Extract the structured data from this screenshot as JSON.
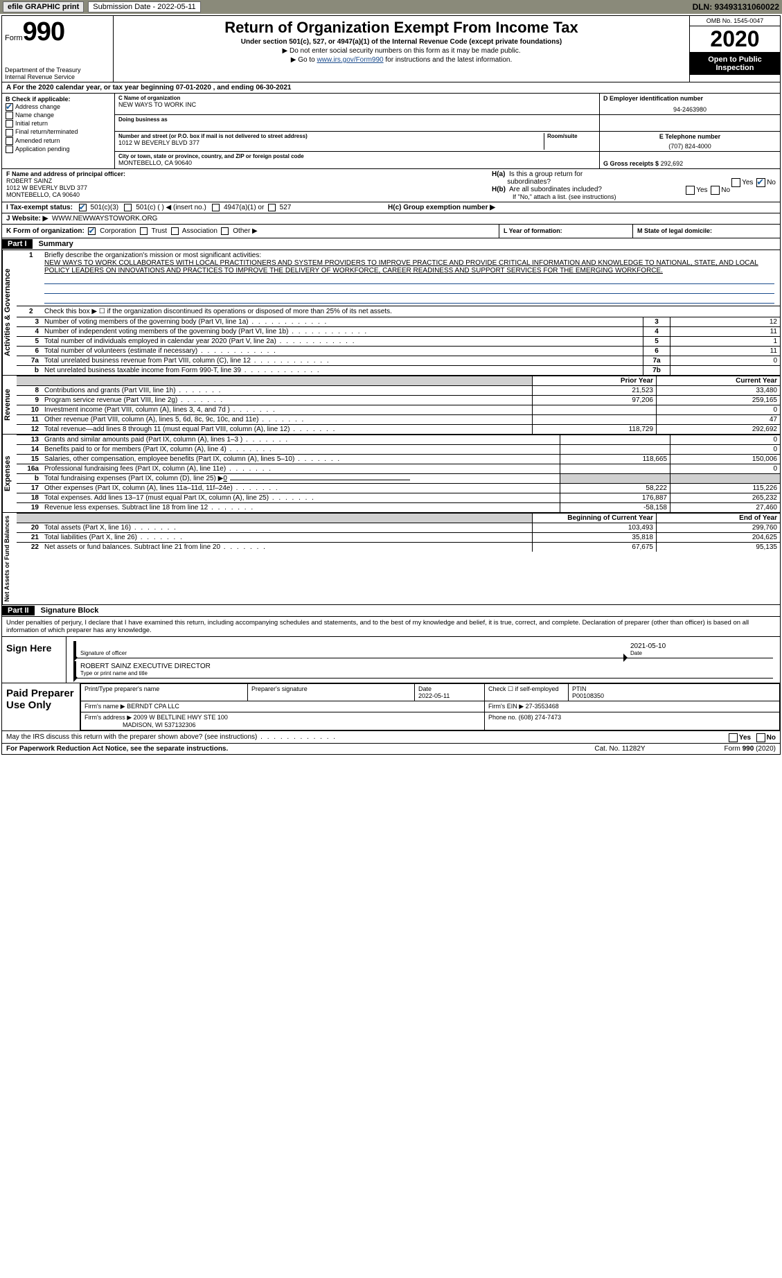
{
  "topbar": {
    "efile": "efile GRAPHIC print",
    "submission_label": "Submission Date - 2022-05-11",
    "dln": "DLN: 93493131060022"
  },
  "header": {
    "form_prefix": "Form",
    "form_number": "990",
    "dept": "Department of the Treasury",
    "irs": "Internal Revenue Service",
    "title": "Return of Organization Exempt From Income Tax",
    "subtitle": "Under section 501(c), 527, or 4947(a)(1) of the Internal Revenue Code (except private foundations)",
    "note1": "▶ Do not enter social security numbers on this form as it may be made public.",
    "note2_pre": "▶ Go to ",
    "note2_link": "www.irs.gov/Form990",
    "note2_post": " for instructions and the latest information.",
    "omb": "OMB No. 1545-0047",
    "year": "2020",
    "open": "Open to Public Inspection"
  },
  "row_a": "A For the 2020 calendar year, or tax year beginning 07-01-2020    , and ending 06-30-2021",
  "box_b": {
    "label": "B Check if applicable:",
    "items": [
      "Address change",
      "Name change",
      "Initial return",
      "Final return/terminated",
      "Amended return",
      "Application pending"
    ],
    "checked_idx": 0
  },
  "box_c": {
    "name_lbl": "C Name of organization",
    "name_val": "NEW WAYS TO WORK INC",
    "dba_lbl": "Doing business as",
    "addr_lbl": "Number and street (or P.O. box if mail is not delivered to street address)",
    "room_lbl": "Room/suite",
    "addr_val": "1012 W BEVERLY BLVD 377",
    "city_lbl": "City or town, state or province, country, and ZIP or foreign postal code",
    "city_val": "MONTEBELLO, CA  90640"
  },
  "box_d": {
    "lbl": "D Employer identification number",
    "val": "94-2463980"
  },
  "box_e": {
    "lbl": "E Telephone number",
    "val": "(707) 824-4000"
  },
  "box_g": {
    "lbl": "G Gross receipts $",
    "val": "292,692"
  },
  "box_f": {
    "lbl": "F Name and address of principal officer:",
    "name": "ROBERT SAINZ",
    "addr1": "1012 W BEVERLY BLVD 377",
    "addr2": "MONTEBELLO, CA  90640"
  },
  "box_h": {
    "ha": "H(a)  Is this a group return for subordinates?",
    "hb": "H(b)  Are all subordinates included?",
    "hb_note": "If \"No,\" attach a list. (see instructions)",
    "hc": "H(c)  Group exemption number ▶",
    "yes": "Yes",
    "no": "No"
  },
  "line_i": {
    "lbl": "I   Tax-exempt status:",
    "opts": [
      "501(c)(3)",
      "501(c) (  ) ◀ (insert no.)",
      "4947(a)(1) or",
      "527"
    ]
  },
  "line_j": {
    "lbl": "J   Website: ▶",
    "val": "WWW.NEWWAYSTOWORK.ORG"
  },
  "line_k": {
    "lbl": "K Form of organization:",
    "opts": [
      "Corporation",
      "Trust",
      "Association",
      "Other ▶"
    ],
    "l_lbl": "L Year of formation:",
    "m_lbl": "M State of legal domicile:"
  },
  "part1": {
    "hdr": "Part I",
    "title": "Summary",
    "vert_ag": "Activities & Governance",
    "vert_rev": "Revenue",
    "vert_exp": "Expenses",
    "vert_na": "Net Assets or Fund Balances",
    "line1_lbl": "Briefly describe the organization's mission or most significant activities:",
    "line1_val": "NEW WAYS TO WORK COLLABORATES WITH LOCAL PRACTITIONERS AND SYSTEM PROVIDERS TO IMPROVE PRACTICE AND PROVIDE CRITICAL INFORMATION AND KNOWLEDGE TO NATIONAL, STATE, AND LOCAL POLICY LEADERS ON INNOVATIONS AND PRACTICES TO IMPROVE THE DELIVERY OF WORKFORCE, CAREER READINESS AND SUPPORT SERVICES FOR THE EMERGING WORKFORCE.",
    "line2": "Check this box ▶ ☐ if the organization discontinued its operations or disposed of more than 25% of its net assets.",
    "ag_rows": [
      {
        "n": "3",
        "d": "Number of voting members of the governing body (Part VI, line 1a)",
        "box": "3",
        "v": "12"
      },
      {
        "n": "4",
        "d": "Number of independent voting members of the governing body (Part VI, line 1b)",
        "box": "4",
        "v": "11"
      },
      {
        "n": "5",
        "d": "Total number of individuals employed in calendar year 2020 (Part V, line 2a)",
        "box": "5",
        "v": "1"
      },
      {
        "n": "6",
        "d": "Total number of volunteers (estimate if necessary)",
        "box": "6",
        "v": "11"
      },
      {
        "n": "7a",
        "d": "Total unrelated business revenue from Part VIII, column (C), line 12",
        "box": "7a",
        "v": "0"
      },
      {
        "n": "b",
        "d": "Net unrelated business taxable income from Form 990-T, line 39",
        "box": "7b",
        "v": ""
      }
    ],
    "col_prior": "Prior Year",
    "col_current": "Current Year",
    "rev_rows": [
      {
        "n": "8",
        "d": "Contributions and grants (Part VIII, line 1h)",
        "p": "21,523",
        "c": "33,480"
      },
      {
        "n": "9",
        "d": "Program service revenue (Part VIII, line 2g)",
        "p": "97,206",
        "c": "259,165"
      },
      {
        "n": "10",
        "d": "Investment income (Part VIII, column (A), lines 3, 4, and 7d )",
        "p": "",
        "c": "0"
      },
      {
        "n": "11",
        "d": "Other revenue (Part VIII, column (A), lines 5, 6d, 8c, 9c, 10c, and 11e)",
        "p": "",
        "c": "47"
      },
      {
        "n": "12",
        "d": "Total revenue—add lines 8 through 11 (must equal Part VIII, column (A), line 12)",
        "p": "118,729",
        "c": "292,692"
      }
    ],
    "exp_rows": [
      {
        "n": "13",
        "d": "Grants and similar amounts paid (Part IX, column (A), lines 1–3 )",
        "p": "",
        "c": "0"
      },
      {
        "n": "14",
        "d": "Benefits paid to or for members (Part IX, column (A), line 4)",
        "p": "",
        "c": "0"
      },
      {
        "n": "15",
        "d": "Salaries, other compensation, employee benefits (Part IX, column (A), lines 5–10)",
        "p": "118,665",
        "c": "150,006"
      },
      {
        "n": "16a",
        "d": "Professional fundraising fees (Part IX, column (A), line 11e)",
        "p": "",
        "c": "0"
      },
      {
        "n": "b",
        "d": "Total fundraising expenses (Part IX, column (D), line 25) ▶0",
        "p": "gray",
        "c": "gray"
      },
      {
        "n": "17",
        "d": "Other expenses (Part IX, column (A), lines 11a–11d, 11f–24e)",
        "p": "58,222",
        "c": "115,226"
      },
      {
        "n": "18",
        "d": "Total expenses. Add lines 13–17 (must equal Part IX, column (A), line 25)",
        "p": "176,887",
        "c": "265,232"
      },
      {
        "n": "19",
        "d": "Revenue less expenses. Subtract line 18 from line 12",
        "p": "-58,158",
        "c": "27,460"
      }
    ],
    "col_beg": "Beginning of Current Year",
    "col_end": "End of Year",
    "na_rows": [
      {
        "n": "20",
        "d": "Total assets (Part X, line 16)",
        "p": "103,493",
        "c": "299,760"
      },
      {
        "n": "21",
        "d": "Total liabilities (Part X, line 26)",
        "p": "35,818",
        "c": "204,625"
      },
      {
        "n": "22",
        "d": "Net assets or fund balances. Subtract line 21 from line 20",
        "p": "67,675",
        "c": "95,135"
      }
    ]
  },
  "part2": {
    "hdr": "Part II",
    "title": "Signature Block",
    "decl": "Under penalties of perjury, I declare that I have examined this return, including accompanying schedules and statements, and to the best of my knowledge and belief, it is true, correct, and complete. Declaration of preparer (other than officer) is based on all information of which preparer has any knowledge.",
    "sign_here": "Sign Here",
    "sig_officer": "Signature of officer",
    "sig_date": "2021-05-10",
    "date_lbl": "Date",
    "officer_name": "ROBERT SAINZ  EXECUTIVE DIRECTOR",
    "type_name": "Type or print name and title",
    "paid_lbl": "Paid Preparer Use Only",
    "prep_name_lbl": "Print/Type preparer's name",
    "prep_sig_lbl": "Preparer's signature",
    "prep_date_lbl": "Date",
    "prep_date": "2022-05-11",
    "check_self": "Check ☐ if self-employed",
    "ptin_lbl": "PTIN",
    "ptin": "P00108350",
    "firm_name_lbl": "Firm's name    ▶",
    "firm_name": "BERNDT CPA LLC",
    "firm_ein_lbl": "Firm's EIN ▶",
    "firm_ein": "27-3553468",
    "firm_addr_lbl": "Firm's address ▶",
    "firm_addr1": "2009 W BELTLINE HWY STE 100",
    "firm_addr2": "MADISON, WI  537132306",
    "firm_phone_lbl": "Phone no.",
    "firm_phone": "(608) 274-7473",
    "may_irs": "May the IRS discuss this return with the preparer shown above? (see instructions)"
  },
  "footer": {
    "pra": "For Paperwork Reduction Act Notice, see the separate instructions.",
    "cat": "Cat. No. 11282Y",
    "form": "Form 990 (2020)"
  }
}
